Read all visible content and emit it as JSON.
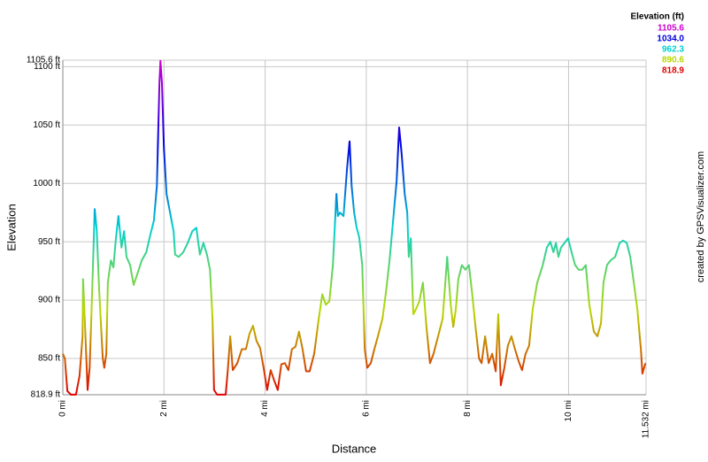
{
  "chart_data": {
    "type": "line",
    "x_label": "Distance",
    "y_label": "Elevation",
    "credit": "created by GPSVisualizer.com",
    "legend": {
      "title": "Elevation (ft)",
      "items": [
        {
          "value": 1105.6,
          "label": "1105.6",
          "color": "#d000d0"
        },
        {
          "value": 1034.0,
          "label": "1034.0",
          "color": "#0000e0"
        },
        {
          "value": 962.3,
          "label": "962.3",
          "color": "#00d0d0"
        },
        {
          "value": 890.6,
          "label": "890.6",
          "color": "#b8d800"
        },
        {
          "value": 818.9,
          "label": "818.9",
          "color": "#e00000"
        }
      ]
    },
    "xlim": [
      0,
      11.532
    ],
    "xticks": [
      {
        "value": 0,
        "label": "0 mi"
      },
      {
        "value": 2,
        "label": "2 mi"
      },
      {
        "value": 4,
        "label": "4 mi"
      },
      {
        "value": 6,
        "label": "6 mi"
      },
      {
        "value": 8,
        "label": "8 mi"
      },
      {
        "value": 10,
        "label": "10 mi"
      },
      {
        "value": 11.532,
        "label": "11.532 mi"
      }
    ],
    "ylim": [
      818.9,
      1105.6
    ],
    "yticks": [
      {
        "value": 818.9,
        "label": "818.9 ft"
      },
      {
        "value": 850,
        "label": "850 ft"
      },
      {
        "value": 900,
        "label": "900 ft"
      },
      {
        "value": 950,
        "label": "950 ft"
      },
      {
        "value": 1000,
        "label": "1000 ft"
      },
      {
        "value": 1050,
        "label": "1050 ft"
      },
      {
        "value": 1100,
        "label": "1100 ft"
      },
      {
        "value": 1105.6,
        "label": "1105.6 ft"
      }
    ],
    "grid": true,
    "x": [
      0.0,
      0.04,
      0.09,
      0.16,
      0.26,
      0.33,
      0.39,
      0.4,
      0.44,
      0.49,
      0.53,
      0.58,
      0.63,
      0.67,
      0.72,
      0.79,
      0.82,
      0.86,
      0.89,
      0.95,
      1.0,
      1.05,
      1.1,
      1.16,
      1.21,
      1.26,
      1.33,
      1.4,
      1.47,
      1.56,
      1.65,
      1.73,
      1.8,
      1.86,
      1.89,
      1.91,
      1.93,
      1.96,
      2.0,
      2.05,
      2.12,
      2.19,
      2.22,
      2.29,
      2.38,
      2.47,
      2.56,
      2.64,
      2.71,
      2.78,
      2.85,
      2.91,
      2.96,
      2.99,
      3.05,
      3.22,
      3.26,
      3.31,
      3.36,
      3.45,
      3.54,
      3.62,
      3.69,
      3.76,
      3.83,
      3.9,
      3.97,
      4.04,
      4.11,
      4.18,
      4.25,
      4.32,
      4.39,
      4.46,
      4.53,
      4.6,
      4.67,
      4.74,
      4.81,
      4.88,
      4.97,
      5.06,
      5.13,
      5.2,
      5.27,
      5.34,
      5.41,
      5.44,
      5.48,
      5.55,
      5.62,
      5.67,
      5.71,
      5.76,
      5.81,
      5.86,
      5.92,
      5.97,
      6.02,
      6.09,
      6.16,
      6.23,
      6.32,
      6.39,
      6.46,
      6.53,
      6.6,
      6.65,
      6.7,
      6.76,
      6.81,
      6.84,
      6.88,
      6.93,
      6.98,
      7.05,
      7.12,
      7.19,
      7.26,
      7.33,
      7.42,
      7.51,
      7.6,
      7.67,
      7.72,
      7.77,
      7.82,
      7.89,
      7.96,
      8.03,
      8.09,
      8.16,
      8.23,
      8.28,
      8.35,
      8.42,
      8.49,
      8.56,
      8.61,
      8.66,
      8.73,
      8.8,
      8.87,
      8.94,
      9.01,
      9.08,
      9.15,
      9.22,
      9.29,
      9.38,
      9.49,
      9.57,
      9.64,
      9.7,
      9.75,
      9.8,
      9.85,
      9.92,
      9.99,
      10.06,
      10.13,
      10.2,
      10.27,
      10.34,
      10.41,
      10.5,
      10.57,
      10.64,
      10.69,
      10.76,
      10.83,
      10.92,
      11.01,
      11.08,
      11.15,
      11.22,
      11.29,
      11.36,
      11.43,
      11.46,
      11.52
    ],
    "values": [
      854,
      850,
      822,
      819,
      819,
      835,
      869,
      918,
      877,
      823,
      842,
      907,
      978,
      960,
      907,
      850,
      842,
      854,
      915,
      934,
      928,
      953,
      972,
      945,
      959,
      937,
      930,
      913,
      922,
      934,
      941,
      956,
      968,
      998,
      1051,
      1086,
      1105,
      1086,
      1029,
      991,
      975,
      959,
      939,
      937,
      941,
      949,
      959,
      962,
      939,
      949,
      939,
      926,
      884,
      823,
      819,
      819,
      839,
      869,
      840,
      846,
      858,
      858,
      871,
      878,
      865,
      859,
      842,
      823,
      840,
      831,
      823,
      845,
      846,
      840,
      858,
      860,
      873,
      858,
      839,
      839,
      854,
      884,
      905,
      896,
      899,
      930,
      991,
      972,
      975,
      972,
      1013,
      1036,
      998,
      975,
      962,
      954,
      930,
      858,
      842,
      846,
      858,
      869,
      884,
      907,
      934,
      968,
      1002,
      1048,
      1025,
      991,
      975,
      937,
      953,
      888,
      892,
      899,
      915,
      877,
      846,
      854,
      869,
      884,
      937,
      896,
      877,
      892,
      918,
      930,
      926,
      930,
      907,
      877,
      850,
      846,
      869,
      846,
      854,
      839,
      888,
      827,
      842,
      861,
      869,
      858,
      848,
      840,
      854,
      861,
      892,
      915,
      930,
      945,
      950,
      941,
      949,
      937,
      945,
      949,
      953,
      941,
      930,
      926,
      926,
      930,
      896,
      873,
      869,
      880,
      915,
      930,
      934,
      937,
      949,
      951,
      949,
      937,
      915,
      892,
      858,
      837,
      846
    ]
  }
}
